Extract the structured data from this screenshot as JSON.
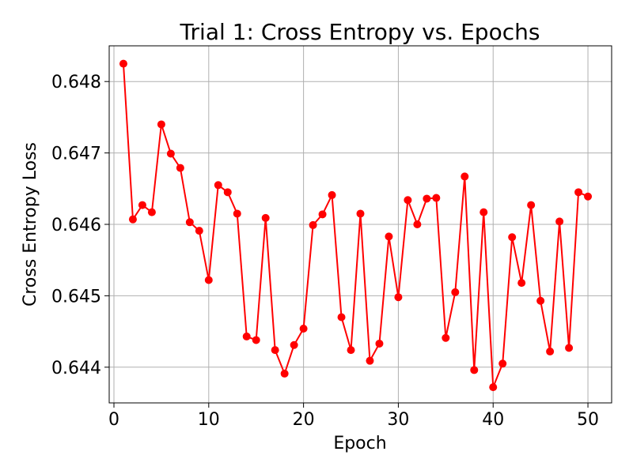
{
  "chart_data": {
    "type": "line",
    "title": "Trial 1: Cross Entropy vs. Epochs",
    "xlabel": "Epoch",
    "ylabel": "Cross Entropy Loss",
    "xlim": [
      -0.5,
      52.5
    ],
    "ylim": [
      0.6435,
      0.6485
    ],
    "xticks": [
      0,
      10,
      20,
      30,
      40,
      50
    ],
    "xtick_labels": [
      "0",
      "10",
      "20",
      "30",
      "40",
      "50"
    ],
    "yticks": [
      0.644,
      0.645,
      0.646,
      0.647,
      0.648
    ],
    "ytick_labels": [
      "0.644",
      "0.645",
      "0.646",
      "0.647",
      "0.648"
    ],
    "grid": true,
    "color": "#ff0000",
    "marker": "circle",
    "x": [
      1,
      2,
      3,
      4,
      5,
      6,
      7,
      8,
      9,
      10,
      11,
      12,
      13,
      14,
      15,
      16,
      17,
      18,
      19,
      20,
      21,
      22,
      23,
      24,
      25,
      26,
      27,
      28,
      29,
      30,
      31,
      32,
      33,
      34,
      35,
      36,
      37,
      38,
      39,
      40,
      41,
      42,
      43,
      44,
      45,
      46,
      47,
      48,
      49,
      50
    ],
    "y": [
      0.64825,
      0.64607,
      0.64627,
      0.64617,
      0.6474,
      0.64699,
      0.64679,
      0.64603,
      0.64591,
      0.64522,
      0.64655,
      0.64645,
      0.64615,
      0.64443,
      0.64438,
      0.64609,
      0.64424,
      0.64391,
      0.64431,
      0.64454,
      0.64599,
      0.64614,
      0.64641,
      0.6447,
      0.64424,
      0.64615,
      0.64409,
      0.64433,
      0.64583,
      0.64498,
      0.64634,
      0.646,
      0.64636,
      0.64637,
      0.64441,
      0.64505,
      0.64667,
      0.64396,
      0.64617,
      0.64372,
      0.64405,
      0.64582,
      0.64518,
      0.64627,
      0.64493,
      0.64422,
      0.64604,
      0.64427,
      0.64645,
      0.64639
    ]
  }
}
